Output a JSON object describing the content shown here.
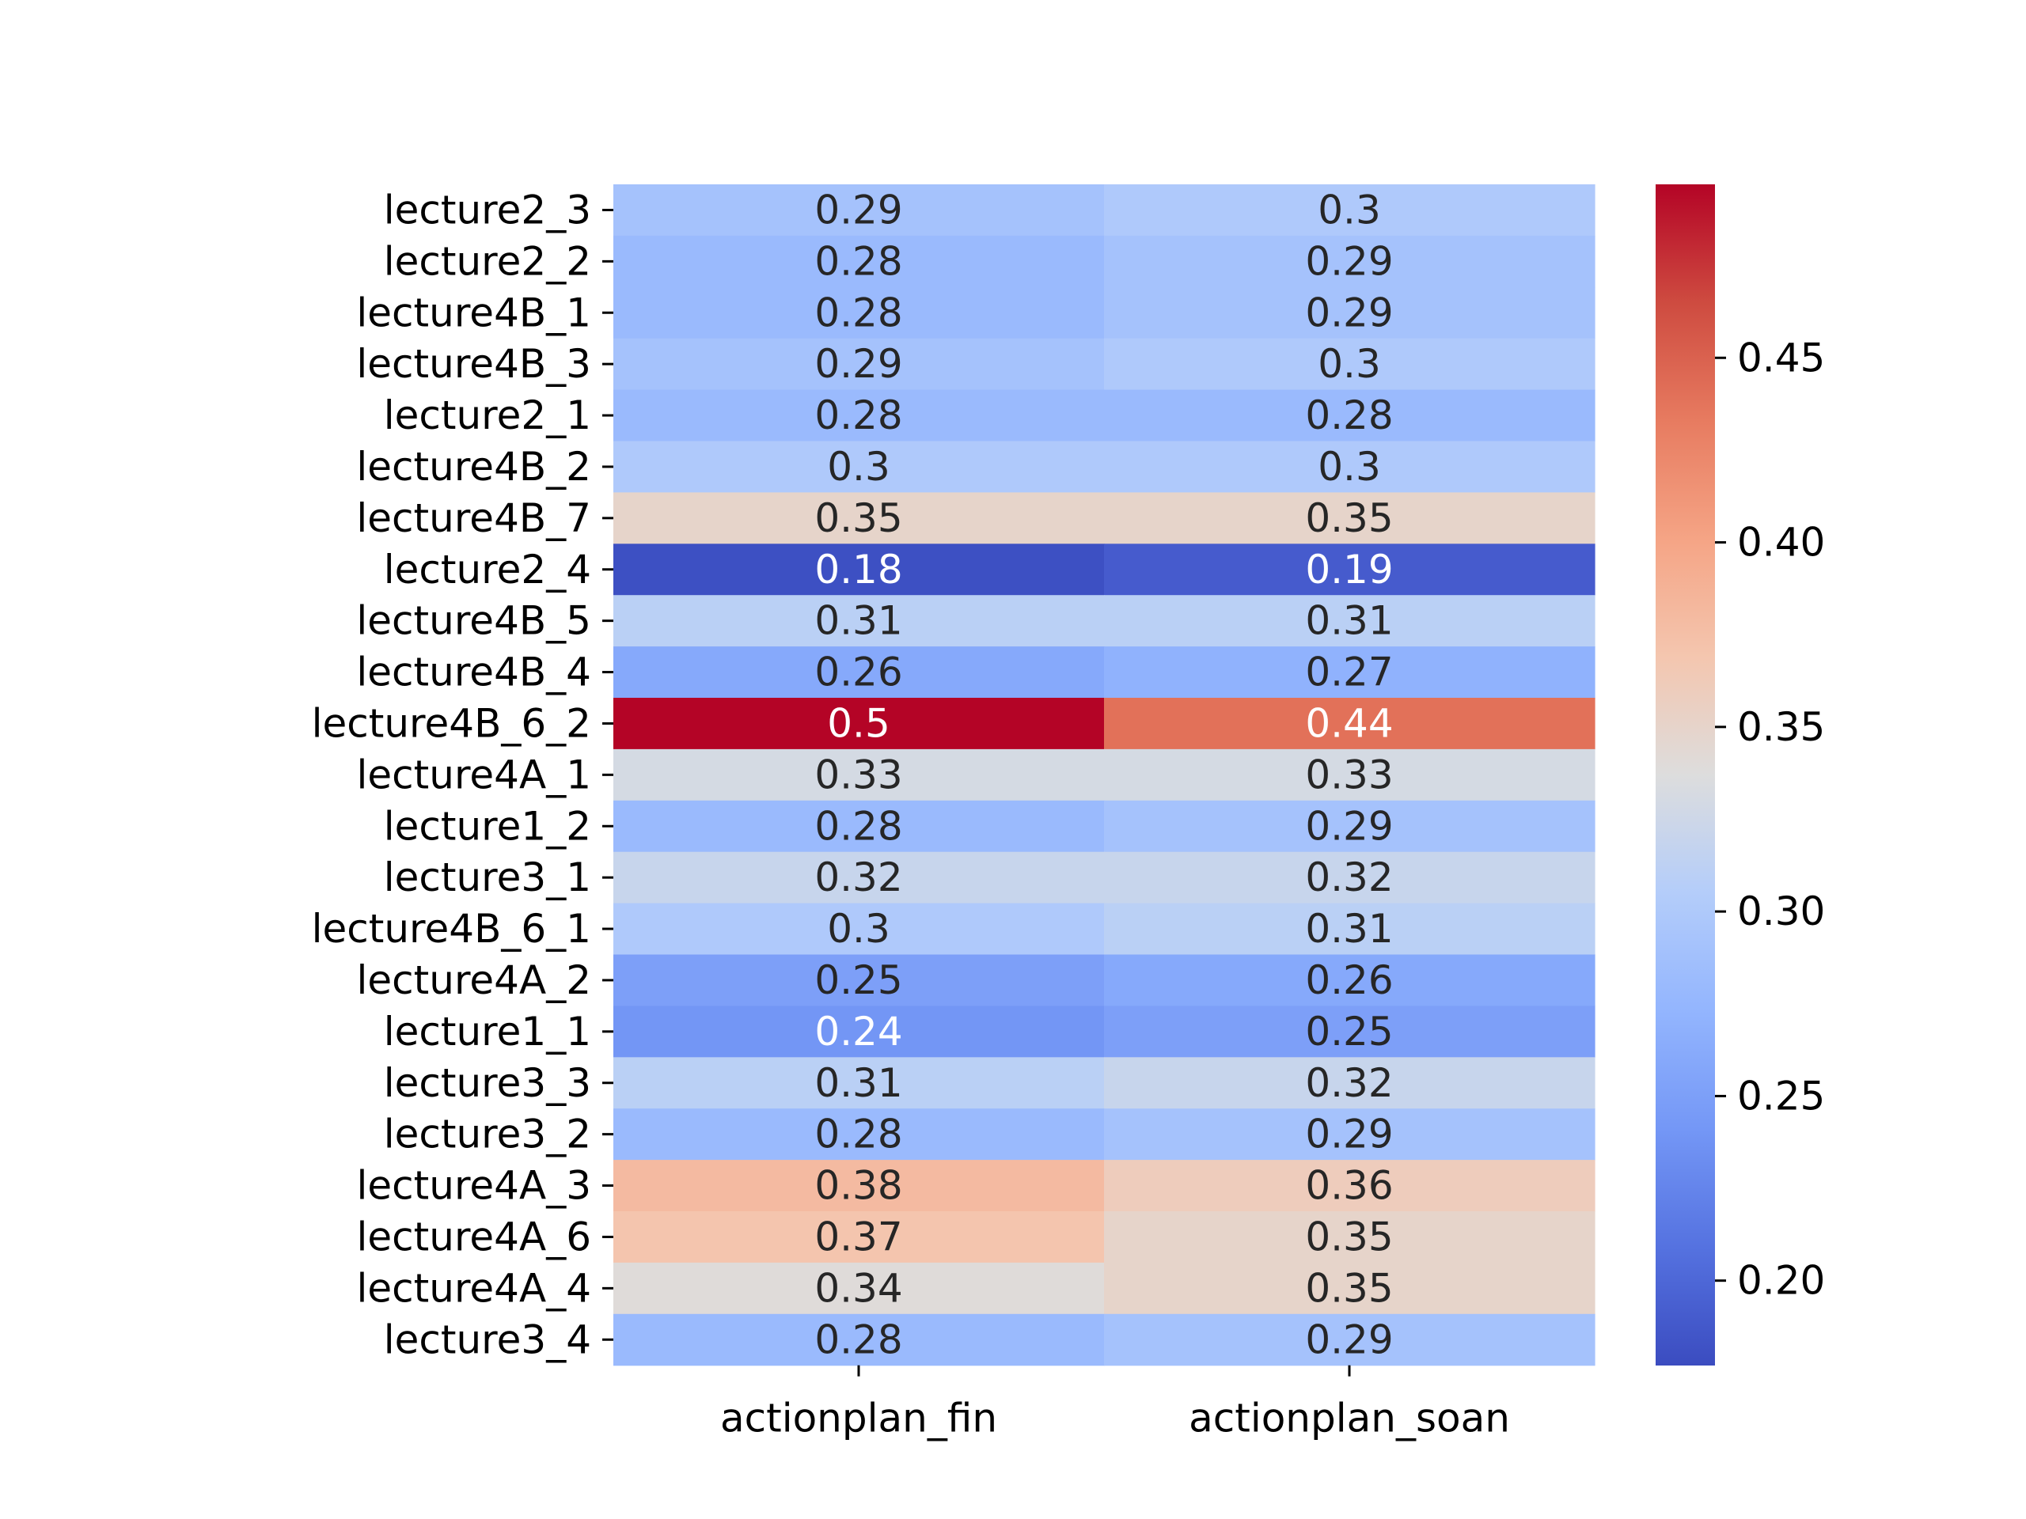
{
  "chart_data": {
    "type": "heatmap",
    "title": "",
    "xlabel": "",
    "ylabel": "",
    "columns": [
      "actionplan_fin",
      "actionplan_soan"
    ],
    "rows": [
      "lecture2_3",
      "lecture2_2",
      "lecture4B_1",
      "lecture4B_3",
      "lecture2_1",
      "lecture4B_2",
      "lecture4B_7",
      "lecture2_4",
      "lecture4B_5",
      "lecture4B_4",
      "lecture4B_6_2",
      "lecture4A_1",
      "lecture1_2",
      "lecture3_1",
      "lecture4B_6_1",
      "lecture4A_2",
      "lecture1_1",
      "lecture3_3",
      "lecture3_2",
      "lecture4A_3",
      "lecture4A_6",
      "lecture4A_4",
      "lecture3_4"
    ],
    "values": [
      [
        0.29,
        0.3
      ],
      [
        0.28,
        0.29
      ],
      [
        0.28,
        0.29
      ],
      [
        0.29,
        0.3
      ],
      [
        0.28,
        0.28
      ],
      [
        0.3,
        0.3
      ],
      [
        0.35,
        0.35
      ],
      [
        0.18,
        0.19
      ],
      [
        0.31,
        0.31
      ],
      [
        0.26,
        0.27
      ],
      [
        0.5,
        0.44
      ],
      [
        0.33,
        0.33
      ],
      [
        0.28,
        0.29
      ],
      [
        0.32,
        0.32
      ],
      [
        0.3,
        0.31
      ],
      [
        0.25,
        0.26
      ],
      [
        0.24,
        0.25
      ],
      [
        0.31,
        0.32
      ],
      [
        0.28,
        0.29
      ],
      [
        0.38,
        0.36
      ],
      [
        0.37,
        0.35
      ],
      [
        0.34,
        0.35
      ],
      [
        0.28,
        0.29
      ]
    ],
    "annotations": [
      [
        "0.29",
        "0.3"
      ],
      [
        "0.28",
        "0.29"
      ],
      [
        "0.28",
        "0.29"
      ],
      [
        "0.29",
        "0.3"
      ],
      [
        "0.28",
        "0.28"
      ],
      [
        "0.3",
        "0.3"
      ],
      [
        "0.35",
        "0.35"
      ],
      [
        "0.18",
        "0.19"
      ],
      [
        "0.31",
        "0.31"
      ],
      [
        "0.26",
        "0.27"
      ],
      [
        "0.5",
        "0.44"
      ],
      [
        "0.33",
        "0.33"
      ],
      [
        "0.28",
        "0.29"
      ],
      [
        "0.32",
        "0.32"
      ],
      [
        "0.3",
        "0.31"
      ],
      [
        "0.25",
        "0.26"
      ],
      [
        "0.24",
        "0.25"
      ],
      [
        "0.31",
        "0.32"
      ],
      [
        "0.28",
        "0.29"
      ],
      [
        "0.38",
        "0.36"
      ],
      [
        "0.37",
        "0.35"
      ],
      [
        "0.34",
        "0.35"
      ],
      [
        "0.28",
        "0.29"
      ]
    ],
    "colormap": "coolwarm",
    "colorbar": {
      "vmin": 0.177,
      "vmax": 0.497,
      "ticks": [
        0.2,
        0.25,
        0.3,
        0.35,
        0.4,
        0.45
      ],
      "tick_labels": [
        "0.20",
        "0.25",
        "0.30",
        "0.35",
        "0.40",
        "0.45"
      ],
      "placement": "right"
    },
    "grid": false,
    "legend": "none"
  }
}
